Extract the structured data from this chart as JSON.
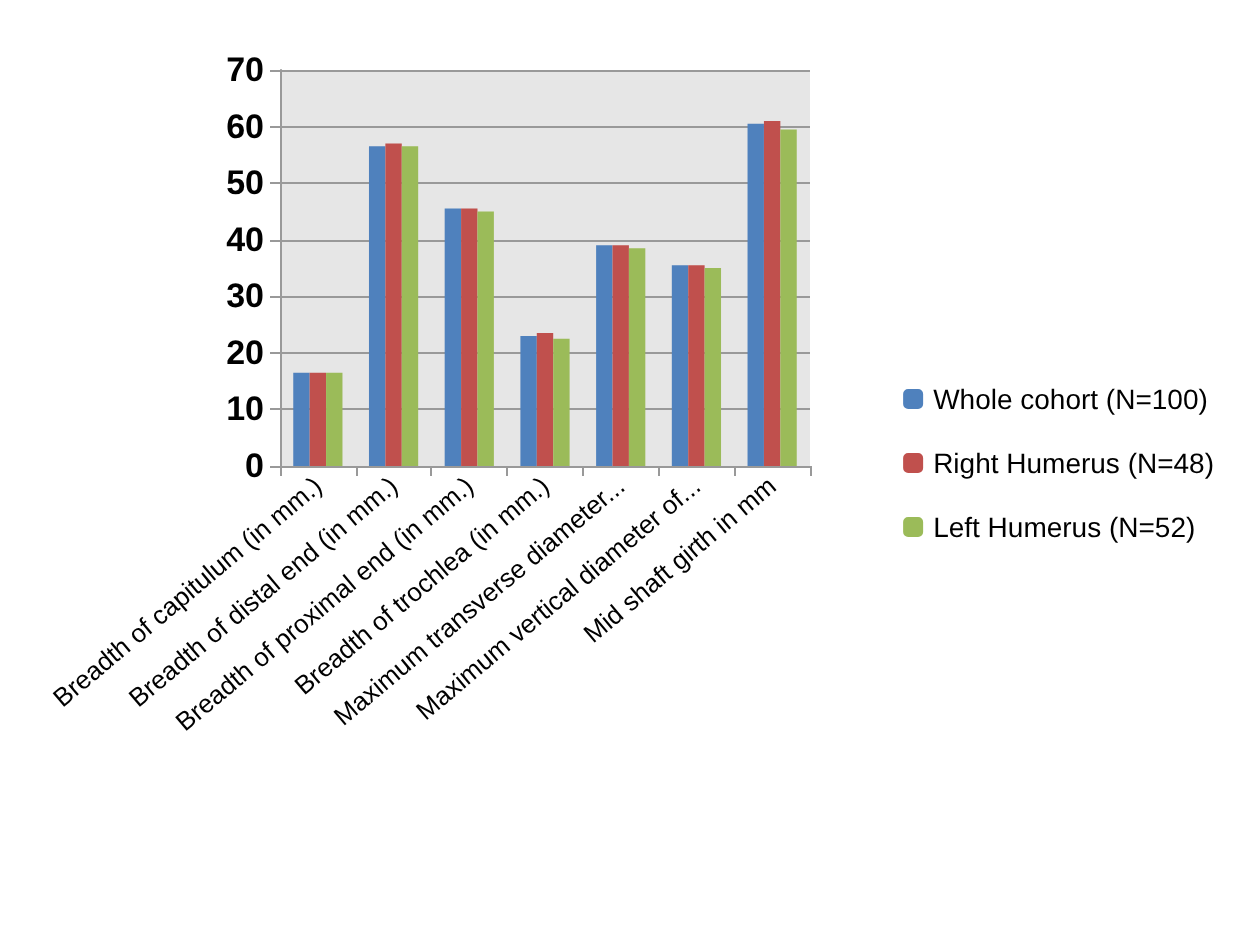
{
  "chart_data": {
    "type": "bar",
    "categories": [
      "Breadth of capitulum (in mm.)",
      "Breadth of distal end (in mm.)",
      "Breadth of proximal end (in mm.)",
      "Breadth of trochlea (in mm.)",
      "Maximum transverse diameter...",
      "Maximum vertical diameter of...",
      "Mid shaft girth in mm"
    ],
    "series": [
      {
        "name": "Whole cohort (N=100)",
        "color": "#4f81bd",
        "values": [
          16.5,
          56.5,
          45.5,
          23,
          39,
          35.5,
          60.5
        ]
      },
      {
        "name": "Right Humerus (N=48)",
        "color": "#c0504d",
        "values": [
          16.5,
          57,
          45.5,
          23.5,
          39,
          35.5,
          61
        ]
      },
      {
        "name": "Left Humerus (N=52)",
        "color": "#9bbb59",
        "values": [
          16.5,
          56.5,
          45,
          22.5,
          38.5,
          35,
          59.5
        ]
      }
    ],
    "ylim": [
      0,
      70
    ],
    "yticks": [
      0,
      10,
      20,
      30,
      40,
      50,
      60,
      70
    ],
    "grid": "y",
    "legend": "right"
  }
}
